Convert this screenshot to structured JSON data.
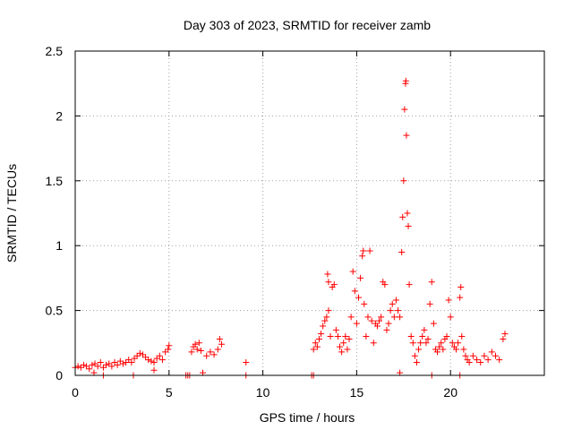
{
  "chart_data": {
    "type": "scatter",
    "title": "Day 303 of 2023, SRMTID for receiver zamb",
    "xlabel": "GPS time / hours",
    "ylabel": "SRMTID / TECUs",
    "xlim": [
      0,
      25
    ],
    "ylim": [
      0,
      2.5
    ],
    "grid": true,
    "marker": "plus",
    "marker_color": "#ff0000",
    "x_ticks": [
      0,
      5,
      10,
      15,
      20
    ],
    "x_tick_labels": [
      "0",
      "5",
      "10",
      "15",
      "20"
    ],
    "y_ticks": [
      0,
      0.5,
      1,
      1.5,
      2,
      2.5
    ],
    "y_tick_labels": [
      "0",
      "0.5",
      "1",
      "1.5",
      "2",
      "2.5"
    ],
    "series": [
      {
        "name": "zamb",
        "points": [
          [
            0.0,
            0.06
          ],
          [
            0.15,
            0.07
          ],
          [
            0.3,
            0.06
          ],
          [
            0.45,
            0.08
          ],
          [
            0.6,
            0.07
          ],
          [
            0.75,
            0.05
          ],
          [
            0.9,
            0.08
          ],
          [
            1.05,
            0.09
          ],
          [
            1.2,
            0.07
          ],
          [
            1.35,
            0.1
          ],
          [
            1.5,
            0.06
          ],
          [
            1.65,
            0.08
          ],
          [
            1.8,
            0.09
          ],
          [
            1.95,
            0.07
          ],
          [
            2.1,
            0.1
          ],
          [
            2.25,
            0.08
          ],
          [
            2.4,
            0.11
          ],
          [
            2.55,
            0.09
          ],
          [
            2.7,
            0.1
          ],
          [
            2.85,
            0.12
          ],
          [
            3.0,
            0.1
          ],
          [
            3.15,
            0.13
          ],
          [
            3.3,
            0.15
          ],
          [
            3.45,
            0.17
          ],
          [
            3.6,
            0.16
          ],
          [
            3.75,
            0.14
          ],
          [
            3.9,
            0.12
          ],
          [
            4.05,
            0.11
          ],
          [
            4.2,
            0.1
          ],
          [
            4.35,
            0.13
          ],
          [
            4.5,
            0.15
          ],
          [
            4.65,
            0.12
          ],
          [
            4.8,
            0.18
          ],
          [
            4.95,
            0.2
          ],
          [
            5.0,
            0.23
          ],
          [
            1.0,
            0.02
          ],
          [
            1.5,
            0.0
          ],
          [
            3.1,
            0.0
          ],
          [
            4.2,
            0.04
          ],
          [
            5.9,
            0.0
          ],
          [
            6.0,
            0.0
          ],
          [
            6.1,
            0.0
          ],
          [
            6.2,
            0.18
          ],
          [
            6.3,
            0.22
          ],
          [
            6.4,
            0.24
          ],
          [
            6.5,
            0.2
          ],
          [
            6.6,
            0.25
          ],
          [
            6.7,
            0.19
          ],
          [
            6.8,
            0.02
          ],
          [
            7.0,
            0.15
          ],
          [
            7.2,
            0.18
          ],
          [
            7.4,
            0.16
          ],
          [
            7.6,
            0.2
          ],
          [
            7.7,
            0.28
          ],
          [
            7.8,
            0.24
          ],
          [
            9.1,
            0.0
          ],
          [
            9.1,
            0.1
          ],
          [
            12.6,
            0.0
          ],
          [
            12.7,
            0.2
          ],
          [
            12.8,
            0.25
          ],
          [
            12.9,
            0.22
          ],
          [
            13.0,
            0.28
          ],
          [
            13.1,
            0.32
          ],
          [
            13.2,
            0.38
          ],
          [
            13.3,
            0.42
          ],
          [
            13.4,
            0.45
          ],
          [
            13.5,
            0.5
          ],
          [
            13.6,
            0.3
          ],
          [
            13.45,
            0.78
          ],
          [
            13.5,
            0.72
          ],
          [
            13.7,
            0.68
          ],
          [
            13.8,
            0.7
          ],
          [
            13.9,
            0.35
          ],
          [
            14.0,
            0.3
          ],
          [
            14.1,
            0.22
          ],
          [
            14.2,
            0.18
          ],
          [
            14.3,
            0.25
          ],
          [
            14.4,
            0.3
          ],
          [
            14.5,
            0.2
          ],
          [
            14.6,
            0.28
          ],
          [
            14.7,
            0.45
          ],
          [
            14.8,
            0.8
          ],
          [
            14.9,
            0.65
          ],
          [
            15.0,
            0.4
          ],
          [
            15.1,
            0.6
          ],
          [
            15.2,
            0.75
          ],
          [
            15.3,
            0.92
          ],
          [
            15.35,
            0.96
          ],
          [
            15.4,
            0.55
          ],
          [
            15.5,
            0.3
          ],
          [
            15.6,
            0.45
          ],
          [
            15.7,
            0.96
          ],
          [
            15.8,
            0.42
          ],
          [
            15.9,
            0.25
          ],
          [
            16.0,
            0.4
          ],
          [
            16.1,
            0.38
          ],
          [
            16.2,
            0.42
          ],
          [
            16.3,
            0.45
          ],
          [
            16.4,
            0.72
          ],
          [
            16.5,
            0.7
          ],
          [
            16.6,
            0.35
          ],
          [
            16.7,
            0.4
          ],
          [
            16.8,
            0.5
          ],
          [
            16.9,
            0.55
          ],
          [
            17.0,
            0.45
          ],
          [
            17.1,
            0.58
          ],
          [
            17.2,
            0.5
          ],
          [
            17.3,
            0.45
          ],
          [
            17.4,
            0.95
          ],
          [
            17.45,
            1.22
          ],
          [
            17.5,
            1.5
          ],
          [
            17.55,
            2.05
          ],
          [
            17.6,
            2.25
          ],
          [
            17.62,
            2.27
          ],
          [
            17.65,
            1.85
          ],
          [
            17.7,
            1.25
          ],
          [
            17.75,
            1.15
          ],
          [
            17.8,
            0.7
          ],
          [
            17.9,
            0.3
          ],
          [
            18.0,
            0.25
          ],
          [
            18.1,
            0.15
          ],
          [
            18.2,
            0.1
          ],
          [
            18.3,
            0.2
          ],
          [
            18.4,
            0.25
          ],
          [
            18.5,
            0.3
          ],
          [
            18.6,
            0.35
          ],
          [
            18.7,
            0.25
          ],
          [
            18.8,
            0.28
          ],
          [
            18.9,
            0.55
          ],
          [
            19.0,
            0.72
          ],
          [
            19.1,
            0.4
          ],
          [
            19.2,
            0.2
          ],
          [
            19.3,
            0.18
          ],
          [
            19.4,
            0.22
          ],
          [
            19.5,
            0.25
          ],
          [
            19.6,
            0.2
          ],
          [
            19.7,
            0.28
          ],
          [
            19.8,
            0.3
          ],
          [
            19.9,
            0.58
          ],
          [
            20.0,
            0.45
          ],
          [
            20.1,
            0.25
          ],
          [
            20.2,
            0.22
          ],
          [
            20.3,
            0.2
          ],
          [
            20.4,
            0.25
          ],
          [
            20.5,
            0.6
          ],
          [
            20.55,
            0.68
          ],
          [
            20.6,
            0.3
          ],
          [
            20.7,
            0.2
          ],
          [
            20.8,
            0.15
          ],
          [
            20.9,
            0.12
          ],
          [
            21.0,
            0.1
          ],
          [
            21.2,
            0.15
          ],
          [
            21.4,
            0.12
          ],
          [
            21.6,
            0.1
          ],
          [
            21.8,
            0.15
          ],
          [
            22.0,
            0.12
          ],
          [
            22.2,
            0.18
          ],
          [
            22.4,
            0.15
          ],
          [
            22.6,
            0.12
          ],
          [
            22.8,
            0.28
          ],
          [
            22.9,
            0.32
          ],
          [
            20.5,
            0.0
          ],
          [
            19.0,
            0.0
          ],
          [
            17.3,
            0.02
          ],
          [
            12.7,
            0.0
          ]
        ]
      }
    ]
  }
}
